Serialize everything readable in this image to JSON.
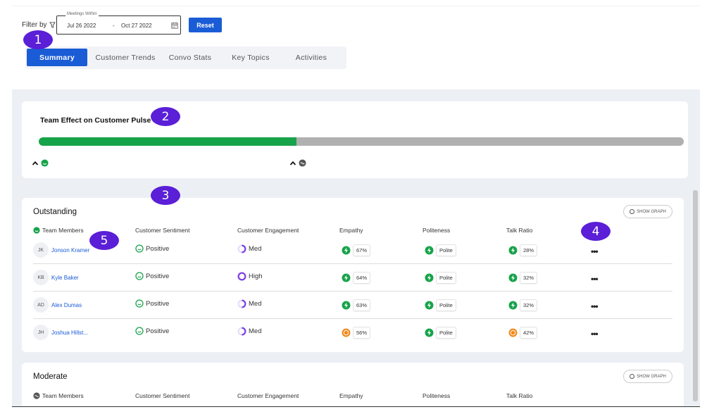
{
  "filter": {
    "label": "Filter by",
    "legend": "Meetings Within",
    "start_date": "Jul 26 2022",
    "separator": "-",
    "end_date": "Oct 27 2022",
    "reset_label": "Reset"
  },
  "tabs": [
    {
      "label": "Summary",
      "active": true
    },
    {
      "label": "Customer Trends",
      "active": false
    },
    {
      "label": "Convo Stats",
      "active": false
    },
    {
      "label": "Key Topics",
      "active": false
    },
    {
      "label": "Activities",
      "active": false
    }
  ],
  "markers": [
    "1",
    "2",
    "3",
    "4",
    "5"
  ],
  "pulse": {
    "title": "Team Effect on Customer Pulse",
    "positive_fraction": 0.4
  },
  "outstanding": {
    "title": "Outstanding",
    "show_graph": "SHOW GRAPH",
    "headers": [
      "Team Members",
      "Customer Sentiment",
      "Customer Engagement",
      "Empathy",
      "Politeness",
      "Talk Ratio"
    ],
    "rows": [
      {
        "initials": "JK",
        "name": "Jonson Kramer",
        "sentiment": "Positive",
        "engagement": "Med",
        "empathy": "67%",
        "empathy_status": "good",
        "politeness": "Polite",
        "talk_ratio": "28%",
        "talk_status": "good"
      },
      {
        "initials": "KB",
        "name": "Kyle Baker",
        "sentiment": "Positive",
        "engagement": "High",
        "empathy": "64%",
        "empathy_status": "good",
        "politeness": "Polite",
        "talk_ratio": "32%",
        "talk_status": "good"
      },
      {
        "initials": "AD",
        "name": "Alex Dumas",
        "sentiment": "Positive",
        "engagement": "Med",
        "empathy": "63%",
        "empathy_status": "good",
        "politeness": "Polite",
        "talk_ratio": "32%",
        "talk_status": "good"
      },
      {
        "initials": "JH",
        "name": "Joshua Hillst...",
        "sentiment": "Positive",
        "engagement": "Med",
        "empathy": "56%",
        "empathy_status": "warn",
        "politeness": "Polite",
        "talk_ratio": "42%",
        "talk_status": "warn"
      }
    ]
  },
  "moderate": {
    "title": "Moderate",
    "show_graph": "SHOW GRAPH",
    "headers": [
      "Team Members",
      "Customer Sentiment",
      "Customer Engagement",
      "Empathy",
      "Politeness",
      "Talk Ratio"
    ]
  },
  "colors": {
    "accent": "#1a5cd6",
    "marker": "#5a1fd6",
    "good": "#17a34a",
    "warn": "#f08a1c",
    "engagement": "#7b3fe4"
  }
}
